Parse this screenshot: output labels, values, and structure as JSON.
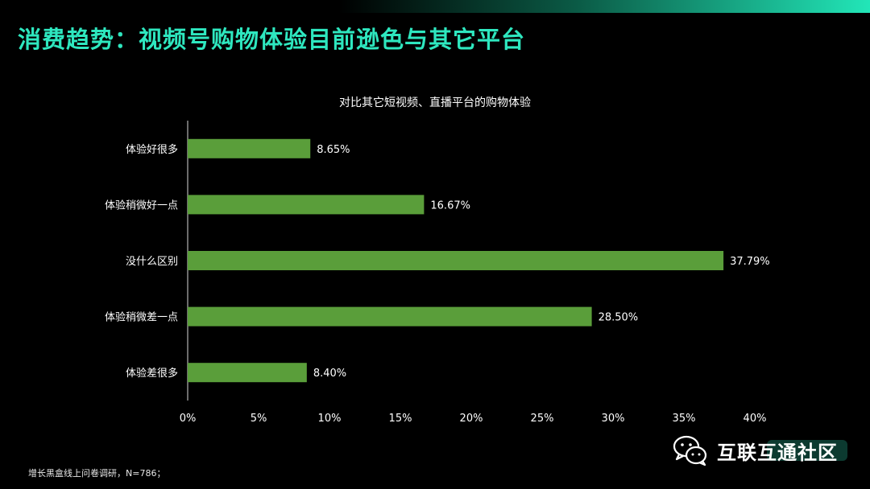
{
  "page": {
    "title": "消费趋势：视频号购物体验目前逊色与其它平台",
    "footnote": "增长黑盒线上问卷调研，N=786；",
    "watermark": {
      "text": "互联互通社区",
      "icon": "wechat-icon"
    }
  },
  "colors": {
    "accent": "#2ee7bf",
    "bar": "#5a9e3a",
    "background": "#000000"
  },
  "chart_data": {
    "type": "bar",
    "orientation": "horizontal",
    "title": "对比其它短视频、直播平台的购物体验",
    "categories": [
      "体验好很多",
      "体验稍微好一点",
      "没什么区别",
      "体验稍微差一点",
      "体验差很多"
    ],
    "values": [
      8.65,
      16.67,
      37.79,
      28.5,
      8.4
    ],
    "value_labels": [
      "8.65%",
      "16.67%",
      "37.79%",
      "28.50%",
      "8.40%"
    ],
    "xlim": [
      0,
      40
    ],
    "xticks": [
      0,
      5,
      10,
      15,
      20,
      25,
      30,
      35,
      40
    ],
    "xtick_labels": [
      "0%",
      "5%",
      "10%",
      "15%",
      "20%",
      "25%",
      "30%",
      "35%",
      "40%"
    ],
    "xlabel": "",
    "ylabel": "",
    "grid": false,
    "legend": "none"
  }
}
